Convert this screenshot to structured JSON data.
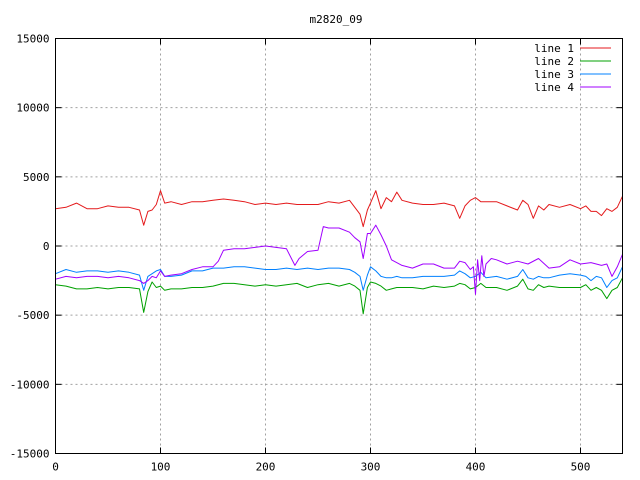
{
  "chart_data": {
    "type": "line",
    "title": "m2820_09",
    "xlabel": "",
    "ylabel": "",
    "xlim": [
      0,
      540
    ],
    "ylim": [
      -15000,
      15000
    ],
    "x_ticks": [
      0,
      100,
      200,
      300,
      400,
      500
    ],
    "y_ticks": [
      -15000,
      -10000,
      -5000,
      0,
      5000,
      10000,
      15000
    ],
    "grid": true,
    "legend_position": "top-right",
    "series": [
      {
        "name": "line 1",
        "color": "#e41a1c",
        "x": [
          0,
          10,
          20,
          30,
          40,
          50,
          60,
          70,
          80,
          84,
          88,
          92,
          96,
          100,
          104,
          110,
          120,
          130,
          140,
          150,
          160,
          170,
          180,
          190,
          200,
          210,
          220,
          230,
          240,
          250,
          260,
          270,
          280,
          285,
          290,
          293,
          297,
          300,
          305,
          310,
          315,
          320,
          325,
          330,
          340,
          350,
          360,
          370,
          380,
          385,
          390,
          395,
          400,
          405,
          410,
          420,
          430,
          440,
          445,
          450,
          455,
          460,
          465,
          470,
          480,
          490,
          500,
          505,
          510,
          515,
          520,
          525,
          530,
          535,
          540
        ],
        "y": [
          2700,
          2800,
          3100,
          2700,
          2700,
          2900,
          2800,
          2800,
          2600,
          1500,
          2500,
          2600,
          3000,
          4000,
          3100,
          3200,
          3000,
          3200,
          3200,
          3300,
          3400,
          3300,
          3200,
          3000,
          3100,
          3000,
          3100,
          3000,
          3000,
          3000,
          3200,
          3100,
          3300,
          2800,
          2300,
          1400,
          2600,
          3100,
          4000,
          2700,
          3500,
          3200,
          3900,
          3300,
          3100,
          3000,
          3000,
          3100,
          2900,
          2000,
          2900,
          3300,
          3500,
          3200,
          3200,
          3200,
          2900,
          2600,
          3300,
          3000,
          2000,
          2900,
          2600,
          3000,
          2800,
          3000,
          2700,
          2900,
          2500,
          2500,
          2200,
          2700,
          2500,
          2800,
          3600
        ]
      },
      {
        "name": "line 2",
        "color": "#00a000",
        "x": [
          0,
          10,
          20,
          30,
          40,
          50,
          60,
          70,
          80,
          84,
          88,
          92,
          96,
          100,
          104,
          110,
          120,
          130,
          140,
          150,
          160,
          170,
          180,
          190,
          200,
          210,
          220,
          230,
          240,
          250,
          260,
          270,
          280,
          285,
          290,
          293,
          297,
          300,
          305,
          310,
          315,
          320,
          325,
          330,
          340,
          350,
          360,
          370,
          380,
          385,
          390,
          395,
          400,
          405,
          410,
          420,
          430,
          440,
          445,
          450,
          455,
          460,
          465,
          470,
          480,
          490,
          500,
          505,
          510,
          515,
          520,
          525,
          530,
          535,
          540
        ],
        "y": [
          -2800,
          -2900,
          -3100,
          -3100,
          -3000,
          -3100,
          -3000,
          -3000,
          -3100,
          -4800,
          -3300,
          -2600,
          -3000,
          -2900,
          -3200,
          -3100,
          -3100,
          -3000,
          -3000,
          -2900,
          -2700,
          -2700,
          -2800,
          -2900,
          -2800,
          -2900,
          -2800,
          -2700,
          -3000,
          -2800,
          -2700,
          -2900,
          -2700,
          -2900,
          -3200,
          -4900,
          -3000,
          -2600,
          -2700,
          -2900,
          -3200,
          -3100,
          -3000,
          -3000,
          -3000,
          -3100,
          -2900,
          -3000,
          -2900,
          -2700,
          -2800,
          -3100,
          -3000,
          -2700,
          -3000,
          -3000,
          -3200,
          -2900,
          -2400,
          -3100,
          -3200,
          -2800,
          -3000,
          -2900,
          -3000,
          -3000,
          -3000,
          -2800,
          -3200,
          -3000,
          -3200,
          -3800,
          -3200,
          -3000,
          -2300
        ]
      },
      {
        "name": "line 3",
        "color": "#0080ff",
        "x": [
          0,
          10,
          20,
          30,
          40,
          50,
          60,
          70,
          80,
          84,
          88,
          92,
          96,
          100,
          104,
          110,
          120,
          130,
          140,
          150,
          160,
          170,
          180,
          190,
          200,
          210,
          220,
          230,
          240,
          250,
          260,
          270,
          280,
          285,
          290,
          293,
          297,
          300,
          305,
          310,
          315,
          320,
          325,
          330,
          340,
          350,
          360,
          370,
          380,
          385,
          390,
          395,
          400,
          405,
          410,
          420,
          430,
          440,
          445,
          450,
          455,
          460,
          465,
          470,
          480,
          490,
          500,
          505,
          510,
          515,
          520,
          525,
          530,
          535,
          540
        ],
        "y": [
          -2000,
          -1700,
          -1900,
          -1800,
          -1800,
          -1900,
          -1800,
          -1900,
          -2100,
          -3200,
          -2200,
          -2000,
          -1800,
          -1700,
          -2200,
          -2200,
          -2100,
          -1800,
          -1800,
          -1600,
          -1600,
          -1500,
          -1500,
          -1600,
          -1700,
          -1700,
          -1600,
          -1700,
          -1600,
          -1700,
          -1600,
          -1600,
          -1700,
          -1900,
          -2200,
          -3200,
          -2100,
          -1500,
          -1800,
          -2200,
          -2300,
          -2300,
          -2200,
          -2300,
          -2300,
          -2200,
          -2200,
          -2200,
          -2100,
          -1800,
          -2000,
          -2300,
          -2200,
          -1900,
          -2300,
          -2200,
          -2400,
          -2200,
          -1700,
          -2300,
          -2400,
          -2200,
          -2300,
          -2300,
          -2100,
          -2000,
          -2100,
          -2200,
          -2500,
          -2200,
          -2300,
          -3000,
          -2500,
          -2300,
          -1500
        ]
      },
      {
        "name": "line 4",
        "color": "#a000ff",
        "x": [
          0,
          10,
          20,
          30,
          40,
          50,
          60,
          70,
          80,
          84,
          88,
          92,
          96,
          100,
          104,
          110,
          120,
          130,
          140,
          150,
          155,
          160,
          170,
          180,
          190,
          200,
          210,
          220,
          228,
          232,
          240,
          250,
          255,
          260,
          270,
          280,
          285,
          290,
          293,
          297,
          300,
          305,
          310,
          315,
          320,
          330,
          340,
          350,
          360,
          370,
          380,
          385,
          390,
          395,
          398,
          400,
          402,
          404,
          406,
          408,
          410,
          415,
          420,
          430,
          440,
          450,
          460,
          470,
          480,
          490,
          500,
          510,
          520,
          525,
          530,
          535,
          540
        ],
        "y": [
          -2400,
          -2200,
          -2300,
          -2200,
          -2200,
          -2300,
          -2200,
          -2300,
          -2500,
          -2700,
          -2500,
          -2200,
          -2300,
          -1800,
          -2200,
          -2100,
          -2000,
          -1700,
          -1500,
          -1500,
          -1100,
          -300,
          -200,
          -200,
          -100,
          0,
          -100,
          -200,
          -1400,
          -900,
          -400,
          -300,
          1400,
          1300,
          1300,
          1000,
          600,
          300,
          -900,
          900,
          900,
          1500,
          800,
          0,
          -1000,
          -1400,
          -1600,
          -1300,
          -1300,
          -1600,
          -1600,
          -1100,
          -1200,
          -1700,
          -1500,
          -3500,
          -1000,
          -2500,
          -700,
          -2200,
          -1300,
          -900,
          -1000,
          -1300,
          -1100,
          -1300,
          -900,
          -1600,
          -1500,
          -1000,
          -1300,
          -1200,
          -1400,
          -1300,
          -2200,
          -1500,
          -600
        ]
      }
    ]
  }
}
